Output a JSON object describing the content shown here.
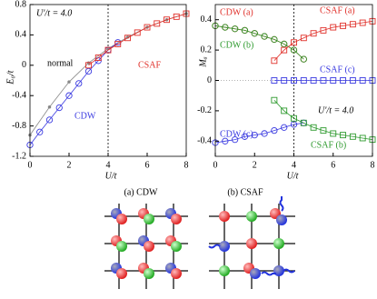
{
  "chart_data": [
    {
      "type": "line",
      "xlabel": "U/t",
      "ylabel": "E₀/t",
      "annotations": [
        "U′/t = 4.0"
      ],
      "xlim": [
        0,
        8
      ],
      "xticks": [
        0,
        2,
        4,
        6,
        8
      ],
      "ylim": [
        -1.2,
        0.8
      ],
      "yticks": [
        -1.2,
        -0.8,
        -0.4,
        0,
        0.4,
        0.8
      ],
      "vlines": [
        4
      ],
      "series": [
        {
          "name": "normal",
          "color": "#888888",
          "marker": "dot",
          "x": [
            0,
            1,
            2,
            3,
            4,
            5,
            6,
            7,
            8
          ],
          "values": [
            -0.92,
            -0.55,
            -0.22,
            0.03,
            0.22,
            0.37,
            0.5,
            0.6,
            0.68
          ]
        },
        {
          "name": "CDW",
          "color": "#3a3ae0",
          "marker": "circle",
          "x": [
            0,
            0.5,
            1,
            1.5,
            2,
            2.5,
            3,
            3.5,
            4,
            4.5
          ],
          "values": [
            -1.05,
            -0.88,
            -0.72,
            -0.56,
            -0.4,
            -0.24,
            -0.08,
            0.06,
            0.2,
            0.3
          ]
        },
        {
          "name": "CSAF",
          "color": "#e0302a",
          "marker": "square",
          "x": [
            3,
            3.5,
            4,
            4.5,
            5,
            5.5,
            6,
            6.5,
            7,
            7.5,
            8
          ],
          "values": [
            0.0,
            0.1,
            0.2,
            0.28,
            0.36,
            0.43,
            0.5,
            0.55,
            0.6,
            0.64,
            0.68
          ]
        }
      ]
    },
    {
      "type": "line",
      "xlabel": "U/t",
      "ylabel": "Mₐ",
      "annotations": [
        "U′/t = 4.0"
      ],
      "xlim": [
        0,
        8
      ],
      "xticks": [
        0,
        2,
        4,
        6,
        8
      ],
      "ylim": [
        -0.5,
        0.5
      ],
      "yticks": [
        -0.4,
        -0.2,
        0,
        0.2,
        0.4
      ],
      "vlines": [
        4
      ],
      "hlines": [
        0
      ],
      "series": [
        {
          "name": "CDW (a)",
          "color": "#e0302a",
          "marker": "circle",
          "x": [
            0,
            0.5,
            1,
            1.5,
            2,
            2.5,
            3,
            3.5,
            4,
            4.5
          ],
          "values": [
            0.36,
            0.35,
            0.34,
            0.33,
            0.31,
            0.29,
            0.27,
            0.24,
            0.2,
            0.14
          ]
        },
        {
          "name": "CDW (b)",
          "color": "#2e9a2e",
          "marker": "circle",
          "x": [
            0,
            0.5,
            1,
            1.5,
            2,
            2.5,
            3,
            3.5,
            4,
            4.5
          ],
          "values": [
            0.36,
            0.35,
            0.34,
            0.33,
            0.31,
            0.29,
            0.27,
            0.24,
            0.2,
            0.14
          ]
        },
        {
          "name": "CDW (c)",
          "color": "#3a3ae0",
          "marker": "circle",
          "x": [
            0,
            0.5,
            1,
            1.5,
            2,
            2.5,
            3,
            3.5,
            4,
            4.5
          ],
          "values": [
            -0.41,
            -0.4,
            -0.39,
            -0.37,
            -0.36,
            -0.35,
            -0.33,
            -0.31,
            -0.29,
            -0.28
          ]
        },
        {
          "name": "CSAF (a)",
          "color": "#e0302a",
          "marker": "square",
          "x": [
            3,
            3.5,
            4,
            4.5,
            5,
            5.5,
            6,
            6.5,
            7,
            7.5,
            8
          ],
          "values": [
            0.13,
            0.2,
            0.25,
            0.28,
            0.31,
            0.33,
            0.35,
            0.36,
            0.37,
            0.38,
            0.39
          ]
        },
        {
          "name": "CSAF (b)",
          "color": "#2e9a2e",
          "marker": "square",
          "x": [
            3,
            3.5,
            4,
            4.5,
            5,
            5.5,
            6,
            6.5,
            7,
            7.5,
            8
          ],
          "values": [
            -0.13,
            -0.2,
            -0.25,
            -0.28,
            -0.31,
            -0.33,
            -0.35,
            -0.36,
            -0.37,
            -0.38,
            -0.39
          ]
        },
        {
          "name": "CSAF (c)",
          "color": "#3a3ae0",
          "marker": "square",
          "x": [
            3,
            3.5,
            4,
            4.5,
            5,
            5.5,
            6,
            6.5,
            7,
            7.5,
            8
          ],
          "values": [
            0,
            0,
            0,
            0,
            0,
            0,
            0,
            0,
            0,
            0,
            0
          ]
        }
      ]
    }
  ],
  "diagrams": [
    {
      "label": "(a) CDW"
    },
    {
      "label": "(b) CSAF"
    }
  ]
}
